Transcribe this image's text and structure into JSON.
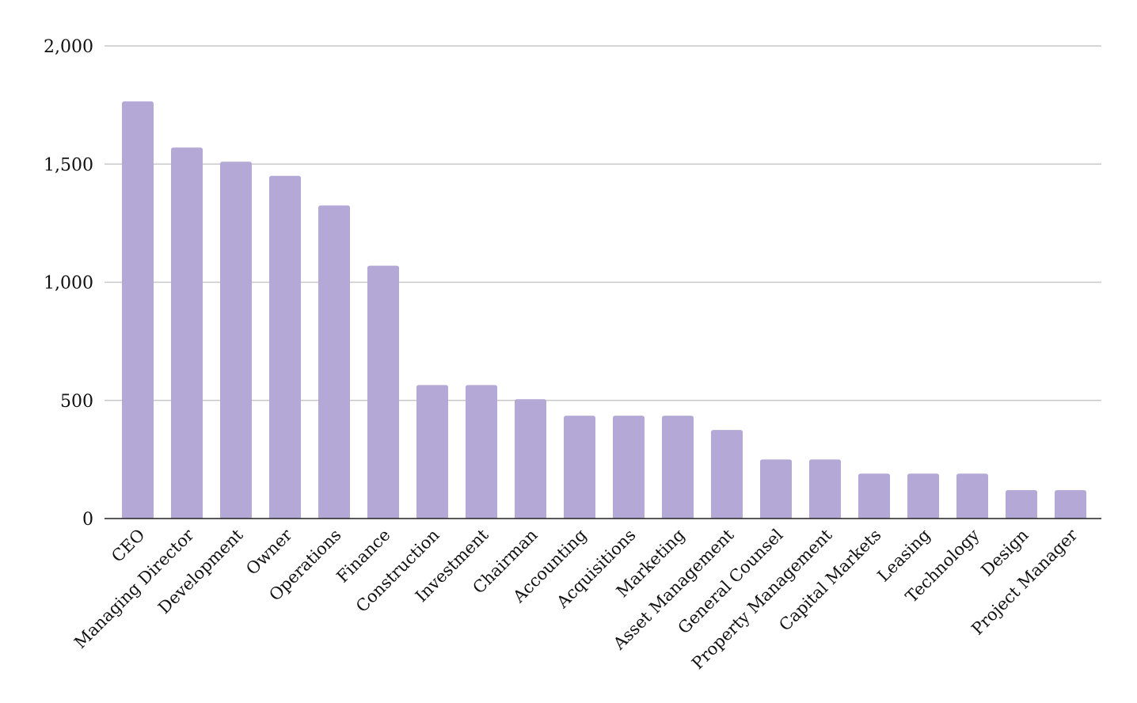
{
  "chart_data": {
    "type": "bar",
    "title": "",
    "xlabel": "",
    "ylabel": "",
    "ylim": [
      0,
      2000
    ],
    "y_ticks": [
      0,
      500,
      1000,
      1500,
      2000
    ],
    "y_tick_labels": [
      "0",
      "500",
      "1,000",
      "1,500",
      "2,000"
    ],
    "grid": true,
    "legend": "none",
    "bar_color": "#b3a8d6",
    "categories": [
      "CEO",
      "Managing Director",
      "Development",
      "Owner",
      "Operations",
      "Finance",
      "Construction",
      "Investment",
      "Chairman",
      "Accounting",
      "Acquisitions",
      "Marketing",
      "Asset Management",
      "General Counsel",
      "Property Management",
      "Capital Markets",
      "Leasing",
      "Technology",
      "Design",
      "Project Manager"
    ],
    "values": [
      1765,
      1570,
      1510,
      1450,
      1325,
      1070,
      565,
      565,
      505,
      435,
      435,
      435,
      375,
      250,
      250,
      190,
      190,
      190,
      120,
      120
    ]
  }
}
